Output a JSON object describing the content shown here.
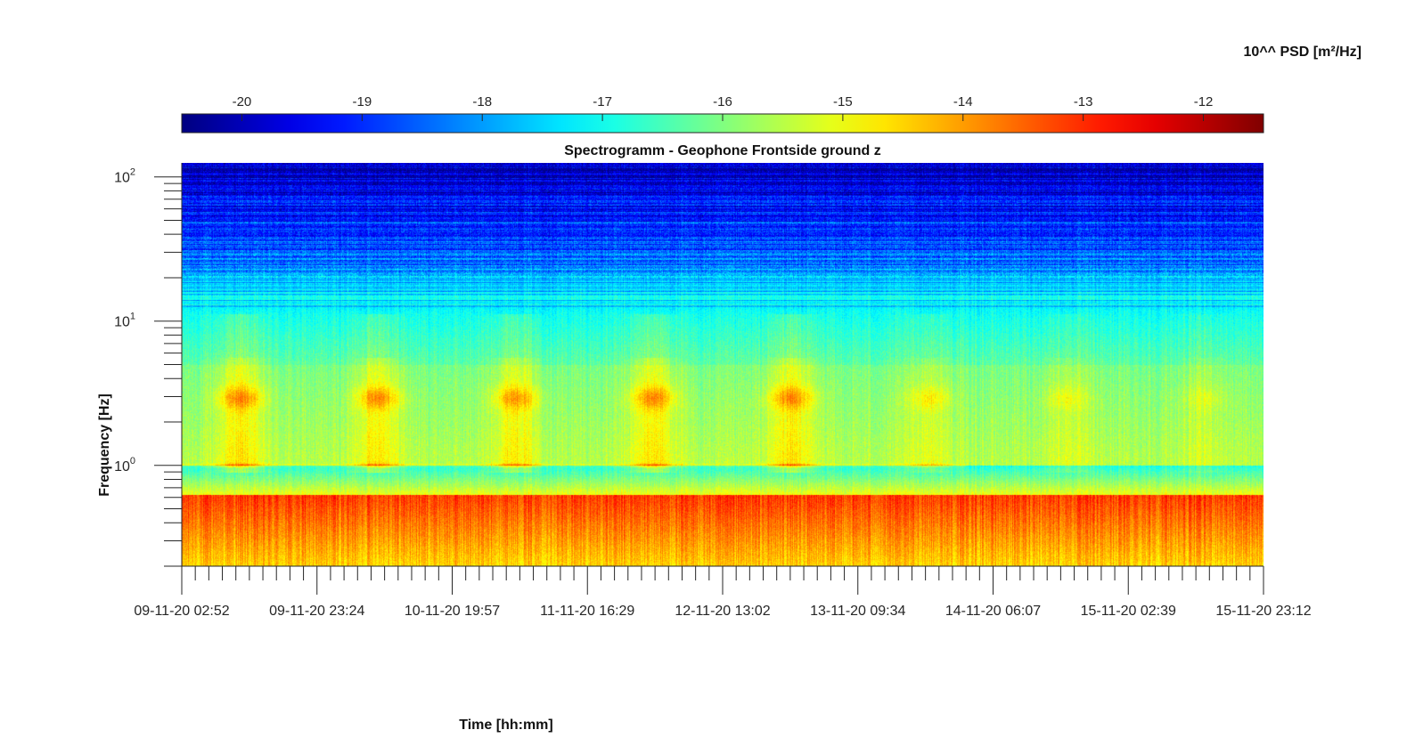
{
  "chart_data": {
    "type": "heatmap",
    "title": "Spectrogramm - Geophone Frontside ground z",
    "xlabel": "Time [hh:mm]",
    "ylabel": "Frequency [Hz]",
    "colorbar_label": "10^^ PSD [m²/Hz]",
    "colormap": "jet",
    "y_scale": "log",
    "ylim": [
      0.2,
      125
    ],
    "x_tick_labels": [
      "09-11-20 02:52",
      "09-11-20 23:24",
      "10-11-20 19:57",
      "11-11-20 16:29",
      "12-11-20 13:02",
      "13-11-20 09:34",
      "14-11-20 06:07",
      "15-11-20 02:39",
      "15-11-20 23:12"
    ],
    "y_ticks": [
      {
        "base": "10",
        "exp": "0",
        "value": 1
      },
      {
        "base": "10",
        "exp": "1",
        "value": 10
      },
      {
        "base": "10",
        "exp": "2",
        "value": 100
      }
    ],
    "colorbar_range": [
      -20.5,
      -11.5
    ],
    "colorbar_ticks": [
      -20,
      -19,
      -18,
      -17,
      -16,
      -15,
      -14,
      -13,
      -12
    ],
    "colorbar_tick_labels": [
      "-20",
      "-19",
      "-18",
      "-17",
      "-16",
      "-15",
      "-14",
      "-13",
      "-12"
    ],
    "colorbar_placement": "top",
    "daily_activity_bands_hz": [
      2.5,
      3.6
    ],
    "band_at_1hz_present": true
  }
}
